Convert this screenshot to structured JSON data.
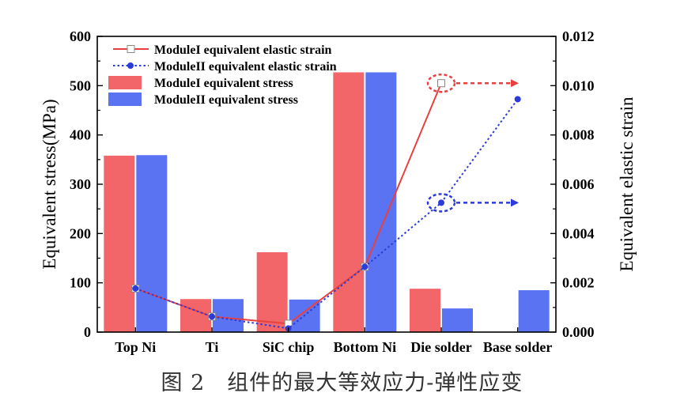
{
  "caption": "图 2　组件的最大等效应力-弹性应变",
  "colors": {
    "module1": "#e8403f",
    "module1_bar": "#f2666a",
    "module2": "#2b3bd9",
    "module2_bar": "#5a73f2",
    "axis": "#000000"
  },
  "chart_data": {
    "type": "bar+line",
    "categories": [
      "Top Ni",
      "Ti",
      "SiC chip",
      "Bottom Ni",
      "Die solder",
      "Base solder"
    ],
    "ylabel_left": "Equivalent stress(MPa)",
    "ylabel_right": "Equivalent elastic strain",
    "ylim_left": [
      0,
      600
    ],
    "yticks_left": [
      "0",
      "100",
      "200",
      "300",
      "400",
      "500",
      "600"
    ],
    "ylim_right": [
      0,
      0.012
    ],
    "yticks_right": [
      "0.000",
      "0.002",
      "0.004",
      "0.006",
      "0.008",
      "0.010",
      "0.012"
    ],
    "bars": [
      {
        "name": "ModuleI equivalent stress",
        "values": [
          358,
          67,
          162,
          527,
          88,
          null
        ]
      },
      {
        "name": "ModuleII equivalent stress",
        "values": [
          359,
          67,
          66,
          527,
          48,
          85
        ]
      }
    ],
    "lines": [
      {
        "name": "ModuleI equivalent elastic strain",
        "style": "solid",
        "marker": "open-square",
        "values": [
          0.00177,
          0.00063,
          0.00034,
          0.00265,
          0.0101,
          null
        ]
      },
      {
        "name": "ModuleII equivalent elastic strain",
        "style": "dotted",
        "marker": "filled-circle",
        "values": [
          0.00177,
          0.00063,
          0.00015,
          0.00265,
          0.00525,
          0.00945
        ]
      }
    ],
    "legend": [
      "ModuleI equivalent elastic strain",
      "ModuleII equivalent elastic strain",
      "ModuleI equivalent stress",
      "ModuleII equivalent stress"
    ],
    "legend_position": "top-center",
    "annotations": [
      {
        "series": "ModuleI equivalent elastic strain",
        "category": "Die solder",
        "kind": "dashed-ellipse-arrow-right"
      },
      {
        "series": "ModuleII equivalent elastic strain",
        "category": "Die solder",
        "kind": "dashed-ellipse-arrow-right"
      }
    ]
  }
}
